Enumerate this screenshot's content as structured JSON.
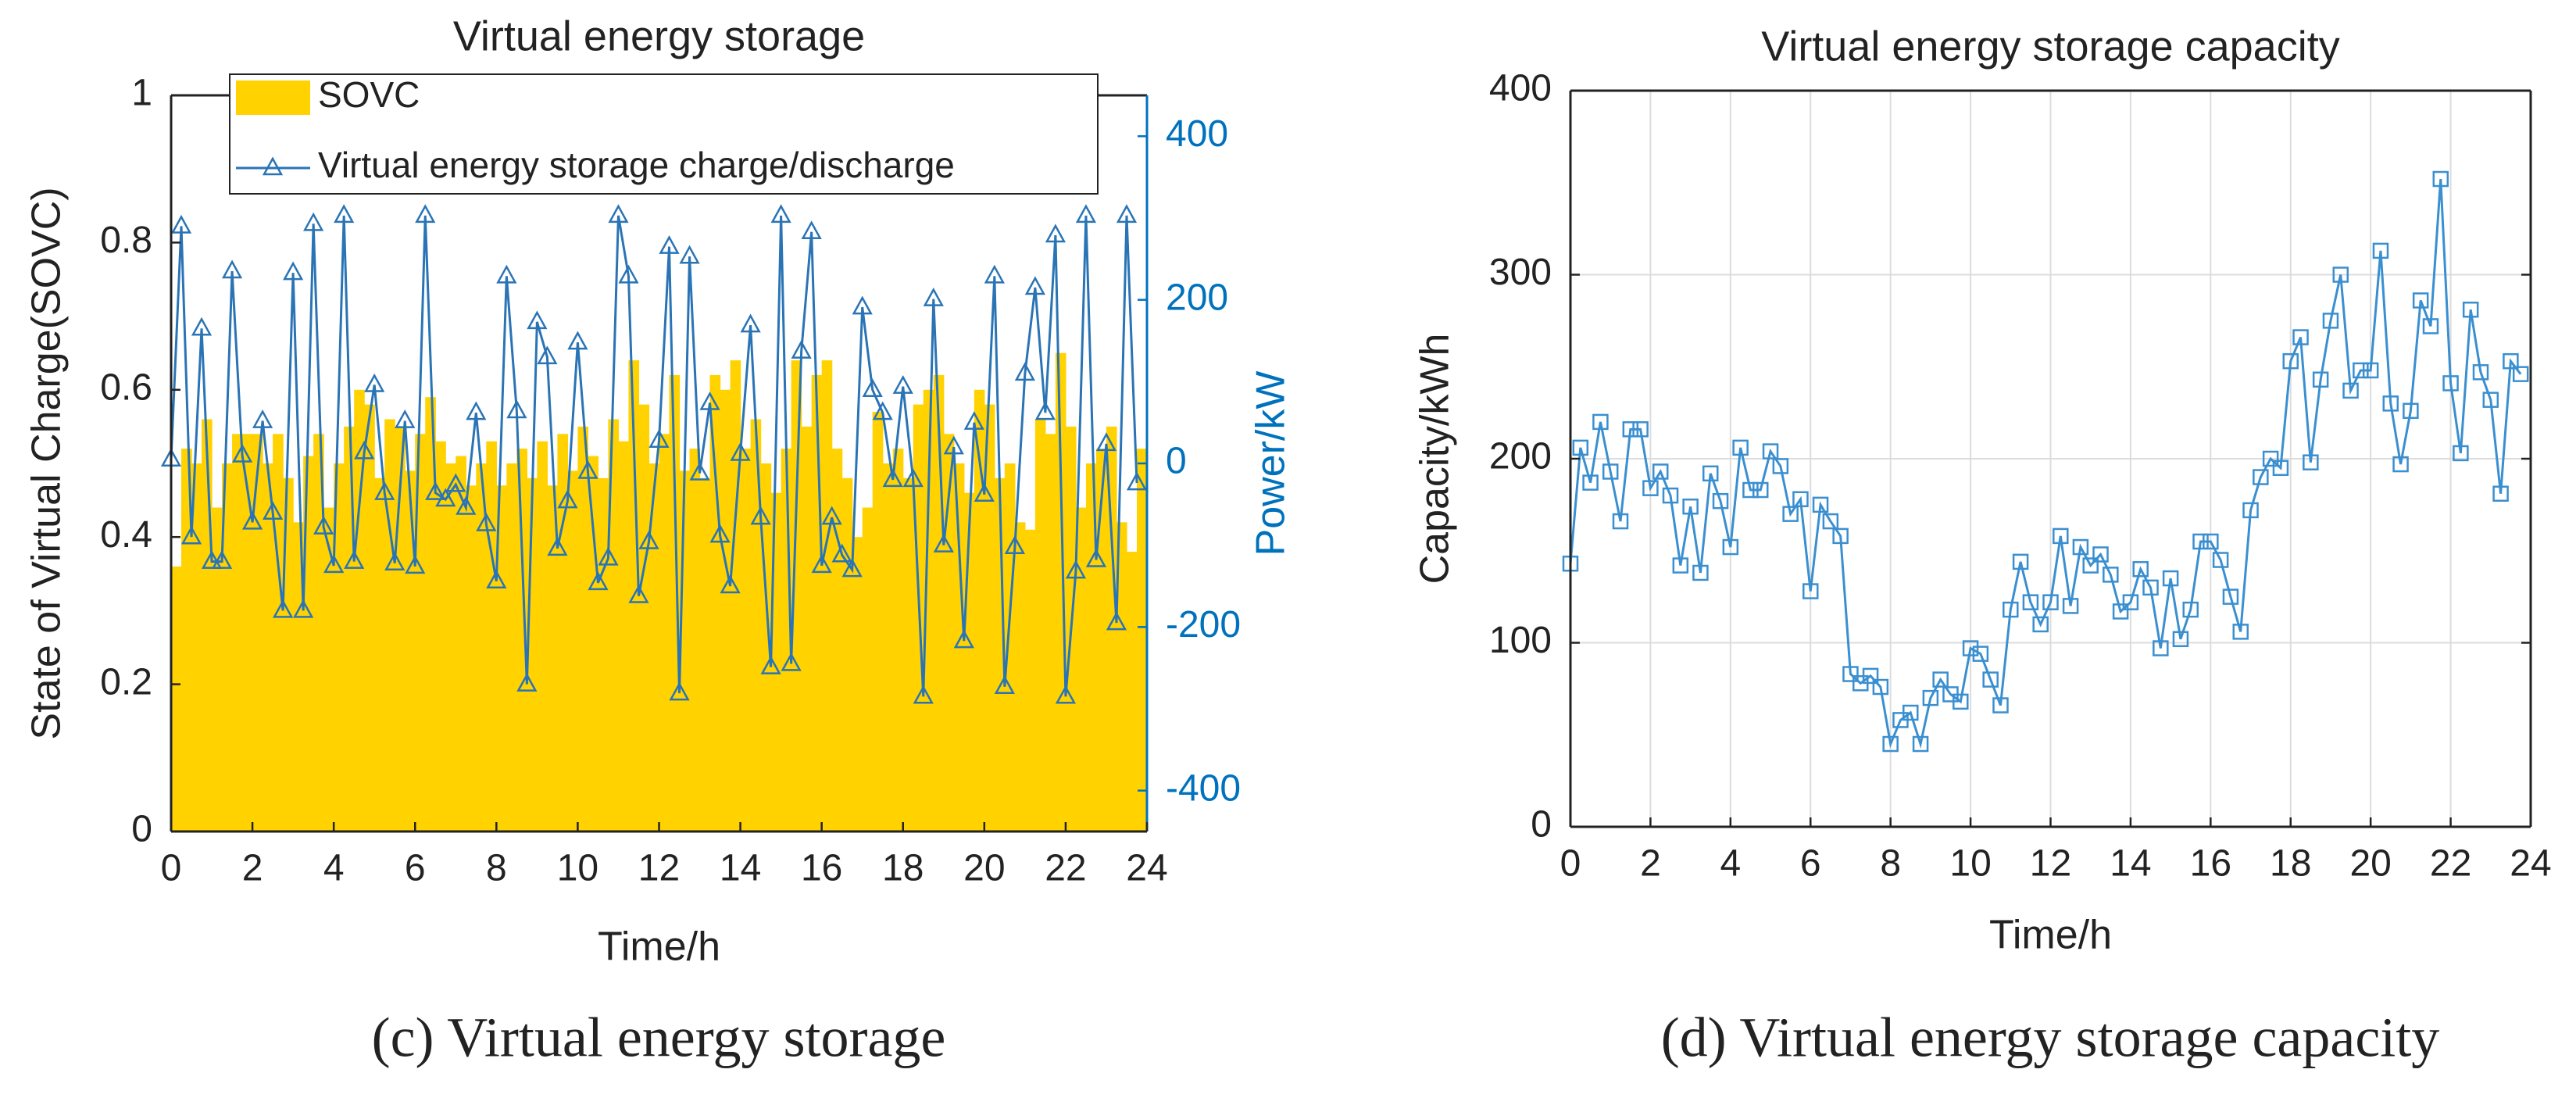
{
  "chart_data": [
    {
      "type": "combo",
      "title": "Virtual energy storage",
      "caption": "(c) Virtual energy storage",
      "xlabel": "Time/h",
      "ylabel": "State of Virtual Charge(SOVC)",
      "y2label": "Power/kW",
      "xlim": [
        0,
        24
      ],
      "xticks": [
        0,
        2,
        4,
        6,
        8,
        10,
        12,
        14,
        16,
        18,
        20,
        22,
        24
      ],
      "ylim": [
        0,
        1
      ],
      "yticks": [
        0,
        0.2,
        0.4,
        0.6,
        0.8,
        1
      ],
      "y2lim": [
        -450,
        450
      ],
      "y2ticks": [
        -400,
        -200,
        0,
        200,
        400
      ],
      "grid": false,
      "legend": "upper center",
      "y2color": "#0072bd",
      "x": [
        0,
        0.25,
        0.5,
        0.75,
        1,
        1.25,
        1.5,
        1.75,
        2,
        2.25,
        2.5,
        2.75,
        3,
        3.25,
        3.5,
        3.75,
        4,
        4.25,
        4.5,
        4.75,
        5,
        5.25,
        5.5,
        5.75,
        6,
        6.25,
        6.5,
        6.75,
        7,
        7.25,
        7.5,
        7.75,
        8,
        8.25,
        8.5,
        8.75,
        9,
        9.25,
        9.5,
        9.75,
        10,
        10.25,
        10.5,
        10.75,
        11,
        11.25,
        11.5,
        11.75,
        12,
        12.25,
        12.5,
        12.75,
        13,
        13.25,
        13.5,
        13.75,
        14,
        14.25,
        14.5,
        14.75,
        15,
        15.25,
        15.5,
        15.75,
        16,
        16.25,
        16.5,
        16.75,
        17,
        17.25,
        17.5,
        17.75,
        18,
        18.25,
        18.5,
        18.75,
        19,
        19.25,
        19.5,
        19.75,
        20,
        20.25,
        20.5,
        20.75,
        21,
        21.25,
        21.5,
        21.75,
        22,
        22.25,
        22.5,
        22.75,
        23,
        23.25,
        23.5,
        23.75
      ],
      "series": [
        {
          "name": "SOVC",
          "type": "bar",
          "color": "#ffd200",
          "values": [
            0.36,
            0.52,
            0.5,
            0.56,
            0.44,
            0.5,
            0.54,
            0.54,
            0.54,
            0.5,
            0.54,
            0.48,
            0.42,
            0.51,
            0.54,
            0.44,
            0.5,
            0.55,
            0.6,
            0.58,
            0.48,
            0.56,
            0.55,
            0.49,
            0.54,
            0.59,
            0.53,
            0.5,
            0.51,
            0.47,
            0.5,
            0.53,
            0.47,
            0.5,
            0.52,
            0.48,
            0.53,
            0.47,
            0.54,
            0.49,
            0.55,
            0.51,
            0.48,
            0.56,
            0.53,
            0.64,
            0.58,
            0.5,
            0.54,
            0.62,
            0.49,
            0.52,
            0.48,
            0.62,
            0.6,
            0.64,
            0.52,
            0.56,
            0.5,
            0.46,
            0.52,
            0.64,
            0.55,
            0.62,
            0.64,
            0.52,
            0.48,
            0.4,
            0.44,
            0.57,
            0.5,
            0.52,
            0.48,
            0.58,
            0.6,
            0.62,
            0.54,
            0.5,
            0.46,
            0.6,
            0.58,
            0.48,
            0.5,
            0.42,
            0.41,
            0.56,
            0.54,
            0.65,
            0.55,
            0.44,
            0.5,
            0.52,
            0.55,
            0.42,
            0.38,
            0.52
          ]
        },
        {
          "name": "Virtual energy storage charge/discharge",
          "type": "line",
          "axis": "y2",
          "marker": "triangle",
          "color": "#2a74b5",
          "values": [
            5,
            290,
            -90,
            165,
            -120,
            -120,
            235,
            10,
            -72,
            52,
            -60,
            -180,
            233,
            -180,
            293,
            -78,
            -125,
            303,
            -120,
            14,
            96,
            -36,
            -122,
            52,
            -126,
            303,
            -36,
            -44,
            -26,
            -54,
            62,
            -74,
            -144,
            229,
            64,
            -270,
            173,
            130,
            -104,
            -46,
            148,
            -10,
            -146,
            -116,
            303,
            229,
            -162,
            -96,
            28,
            265,
            -281,
            253,
            -12,
            74,
            -88,
            -150,
            12,
            169,
            -66,
            -249,
            303,
            -245,
            137,
            283,
            -125,
            -66,
            -112,
            -130,
            191,
            90,
            62,
            -20,
            94,
            -20,
            -285,
            201,
            -100,
            20,
            -217,
            50,
            -38,
            229,
            -273,
            -102,
            110,
            215,
            62,
            279,
            -285,
            -132,
            303,
            -118,
            24,
            -195,
            303,
            -24
          ]
        }
      ]
    },
    {
      "type": "line",
      "title": "Virtual energy storage capacity",
      "caption": "(d) Virtual energy storage capacity",
      "xlabel": "Time/h",
      "ylabel": "Capacity/kWh",
      "xlim": [
        0,
        24
      ],
      "xticks": [
        0,
        2,
        4,
        6,
        8,
        10,
        12,
        14,
        16,
        18,
        20,
        22,
        24
      ],
      "ylim": [
        0,
        400
      ],
      "yticks": [
        0,
        100,
        200,
        300,
        400
      ],
      "grid": true,
      "x": [
        0,
        0.25,
        0.5,
        0.75,
        1,
        1.25,
        1.5,
        1.75,
        2,
        2.25,
        2.5,
        2.75,
        3,
        3.25,
        3.5,
        3.75,
        4,
        4.25,
        4.5,
        4.75,
        5,
        5.25,
        5.5,
        5.75,
        6,
        6.25,
        6.5,
        6.75,
        7,
        7.25,
        7.5,
        7.75,
        8,
        8.25,
        8.5,
        8.75,
        9,
        9.25,
        9.5,
        9.75,
        10,
        10.25,
        10.5,
        10.75,
        11,
        11.25,
        11.5,
        11.75,
        12,
        12.25,
        12.5,
        12.75,
        13,
        13.25,
        13.5,
        13.75,
        14,
        14.25,
        14.5,
        14.75,
        15,
        15.25,
        15.5,
        15.75,
        16,
        16.25,
        16.5,
        16.75,
        17,
        17.25,
        17.5,
        17.75,
        18,
        18.25,
        18.5,
        18.75,
        19,
        19.25,
        19.5,
        19.75,
        20,
        20.25,
        20.5,
        20.75,
        21,
        21.25,
        21.5,
        21.75,
        22,
        22.25,
        22.5,
        22.75,
        23,
        23.25,
        23.5,
        23.75
      ],
      "series": [
        {
          "type": "line",
          "marker": "square",
          "color": "#3a8fd0",
          "values": [
            143,
            206,
            187,
            220,
            193,
            166,
            216,
            216,
            184,
            193,
            180,
            142,
            174,
            138,
            192,
            177,
            152,
            206,
            183,
            183,
            204,
            196,
            170,
            178,
            128,
            175,
            166,
            158,
            83,
            78,
            82,
            76,
            45,
            58,
            62,
            45,
            70,
            80,
            72,
            68,
            97,
            94,
            80,
            66,
            118,
            144,
            122,
            110,
            122,
            158,
            120,
            152,
            142,
            148,
            137,
            117,
            122,
            140,
            130,
            97,
            135,
            102,
            118,
            155,
            155,
            145,
            125,
            106,
            172,
            190,
            200,
            195,
            253,
            266,
            198,
            243,
            275,
            300,
            237,
            248,
            248,
            313,
            230,
            197,
            226,
            286,
            272,
            352,
            241,
            203,
            281,
            247,
            232,
            181,
            253,
            246
          ]
        }
      ]
    }
  ]
}
